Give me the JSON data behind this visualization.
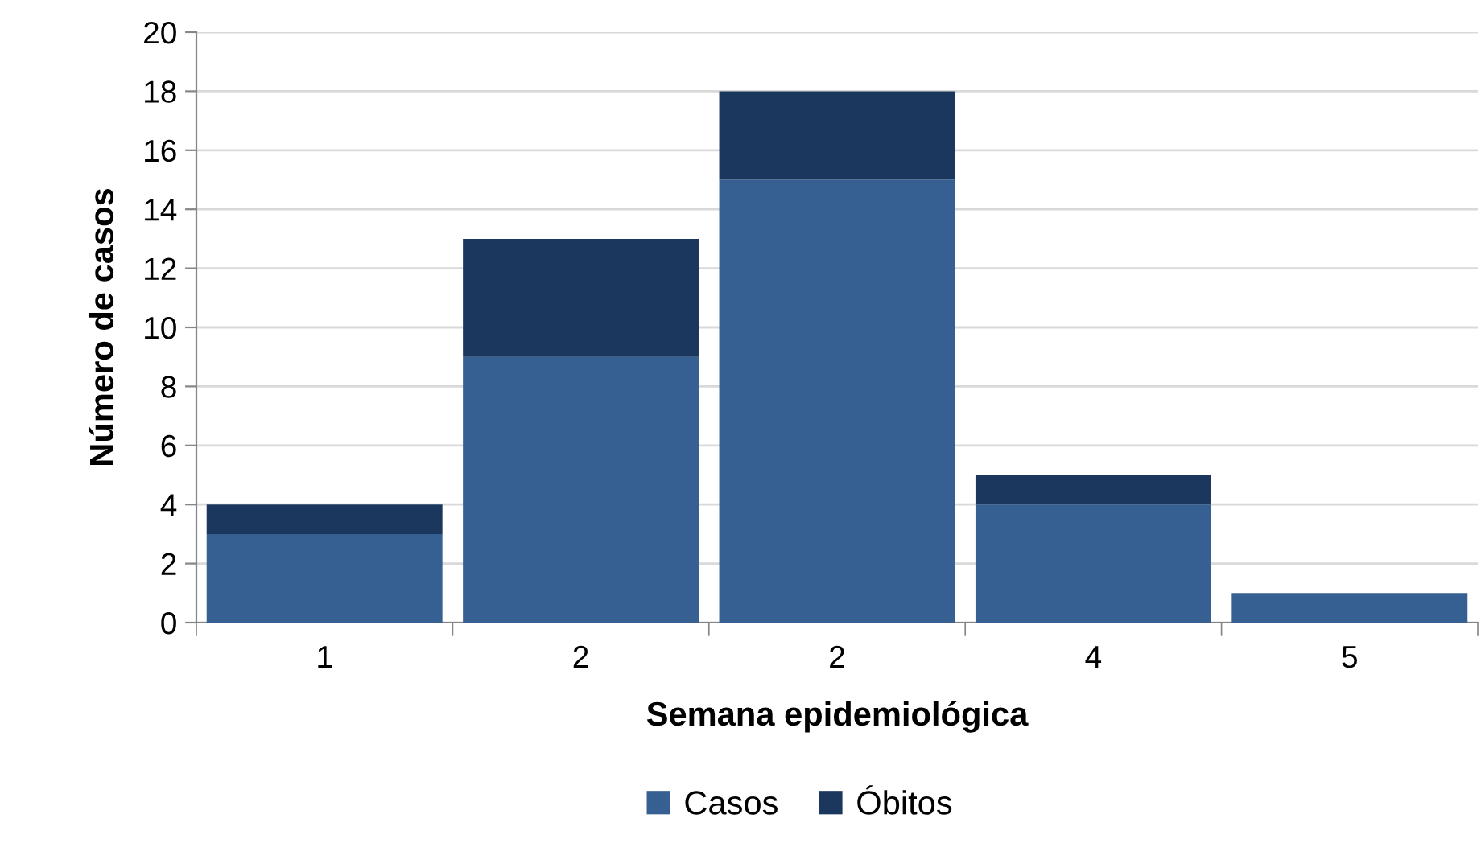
{
  "chart_data": {
    "type": "bar",
    "stacked": true,
    "xlabel": "Semana epidemiológica",
    "ylabel": "Número de casos",
    "categories": [
      "1",
      "2",
      "2",
      "4",
      "5"
    ],
    "series": [
      {
        "name": "Casos",
        "color": "#366092",
        "values": [
          3,
          9,
          15,
          4,
          1
        ]
      },
      {
        "name": "Óbitos",
        "color": "#1b375e",
        "values": [
          1,
          4,
          3,
          1,
          null
        ]
      }
    ],
    "ylim": [
      0,
      20
    ],
    "yticks": [
      0,
      2,
      4,
      6,
      8,
      10,
      12,
      14,
      16,
      18,
      20
    ],
    "grid": "y",
    "legend": "bottom"
  }
}
